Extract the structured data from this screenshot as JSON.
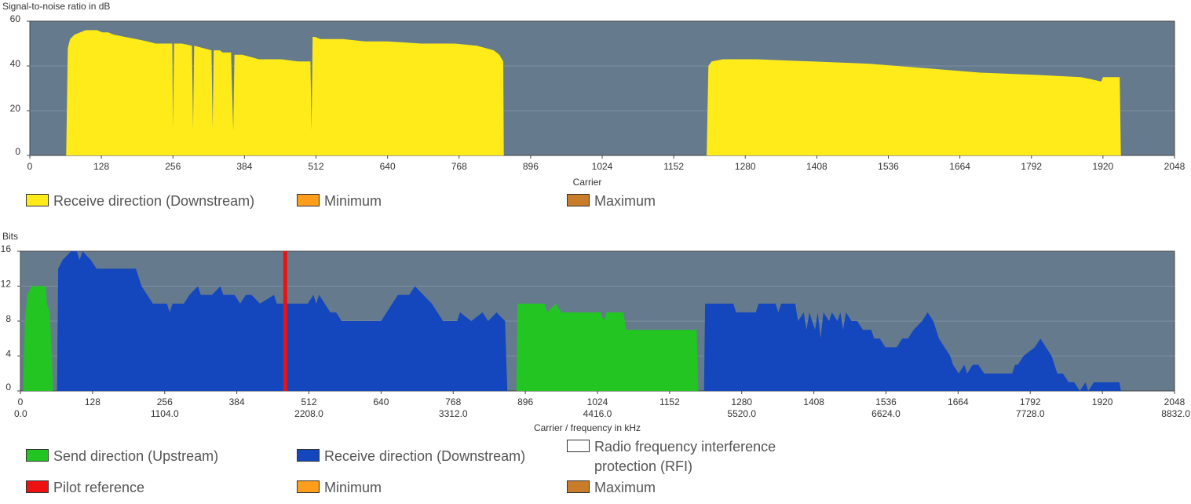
{
  "colors": {
    "plot_bg": "#657a8d",
    "grid": "#7f90a0",
    "snr_fill": "#ffeb1a",
    "upstream": "#22c522",
    "downstream": "#1447bd",
    "pilot": "#ee1111",
    "rfi": "#ffffff",
    "minimum": "#ff9e1a",
    "maximum": "#c97c2a"
  },
  "snr_chart": {
    "ylabel": "Signal-to-noise ratio in dB",
    "xlabel": "Carrier",
    "legend": {
      "downstream": "Receive direction (Downstream)",
      "minimum": "Minimum",
      "maximum": "Maximum"
    }
  },
  "bits_chart": {
    "ylabel": "Bits",
    "xlabel": "Carrier / frequency in kHz",
    "legend": {
      "upstream": "Send direction (Upstream)",
      "downstream": "Receive direction (Downstream)",
      "rfi": "Radio frequency interference protection (RFI)",
      "pilot": "Pilot reference",
      "minimum": "Minimum",
      "maximum": "Maximum"
    }
  },
  "chart_data": [
    {
      "type": "area",
      "title": "",
      "xlabel": "Carrier",
      "ylabel": "Signal-to-noise ratio in dB",
      "xlim": [
        0,
        2048
      ],
      "ylim": [
        0,
        60
      ],
      "x_ticks": [
        "0",
        "128",
        "256",
        "384",
        "512",
        "640",
        "768",
        "896",
        "1024",
        "1152",
        "1280",
        "1408",
        "1536",
        "1664",
        "1792",
        "1920",
        "2048"
      ],
      "y_ticks": [
        "0",
        "20",
        "40",
        "60"
      ],
      "grid": true,
      "legend_position": "bottom",
      "series": [
        {
          "name": "Receive direction (Downstream)",
          "color": "#ffeb1a",
          "points": [
            [
              65,
              0
            ],
            [
              68,
              48
            ],
            [
              72,
              52
            ],
            [
              80,
              54
            ],
            [
              90,
              55
            ],
            [
              100,
              56
            ],
            [
              120,
              56
            ],
            [
              130,
              55
            ],
            [
              140,
              55
            ],
            [
              150,
              54
            ],
            [
              170,
              53
            ],
            [
              190,
              52
            ],
            [
              210,
              51
            ],
            [
              225,
              50
            ],
            [
              255,
              50
            ],
            [
              256,
              12
            ],
            [
              258,
              50
            ],
            [
              272,
              50
            ],
            [
              290,
              49
            ],
            [
              292,
              12
            ],
            [
              294,
              49
            ],
            [
              310,
              48
            ],
            [
              325,
              47
            ],
            [
              327,
              12
            ],
            [
              329,
              47
            ],
            [
              340,
              47
            ],
            [
              345,
              46
            ],
            [
              360,
              46
            ],
            [
              364,
              11
            ],
            [
              366,
              45
            ],
            [
              380,
              45
            ],
            [
              395,
              44
            ],
            [
              410,
              43
            ],
            [
              450,
              43
            ],
            [
              480,
              42
            ],
            [
              502,
              42
            ],
            [
              504,
              11
            ],
            [
              506,
              53
            ],
            [
              510,
              53
            ],
            [
              520,
              52
            ],
            [
              560,
              52
            ],
            [
              600,
              51
            ],
            [
              640,
              51
            ],
            [
              700,
              50
            ],
            [
              760,
              50
            ],
            [
              800,
              49
            ],
            [
              830,
              47
            ],
            [
              840,
              45
            ],
            [
              847,
              42
            ],
            [
              848,
              0
            ],
            [
              1211,
              0
            ],
            [
              1214,
              40
            ],
            [
              1220,
              42
            ],
            [
              1240,
              43
            ],
            [
              1300,
              43
            ],
            [
              1400,
              42
            ],
            [
              1500,
              41
            ],
            [
              1600,
              39
            ],
            [
              1700,
              37
            ],
            [
              1800,
              36
            ],
            [
              1880,
              35
            ],
            [
              1900,
              34
            ],
            [
              1917,
              33
            ],
            [
              1920,
              35
            ],
            [
              1950,
              35
            ],
            [
              1952,
              0
            ]
          ]
        }
      ]
    },
    {
      "type": "area",
      "title": "",
      "xlabel": "Carrier / frequency in kHz",
      "ylabel": "Bits",
      "xlim": [
        0,
        2048
      ],
      "ylim": [
        0,
        16
      ],
      "x_ticks": [
        "0",
        "128",
        "256",
        "384",
        "512",
        "640",
        "768",
        "896",
        "1024",
        "1152",
        "1280",
        "1408",
        "1536",
        "1664",
        "1792",
        "1920",
        "2048"
      ],
      "freq_ticks": [
        {
          "carrier": 0,
          "label": "0.0"
        },
        {
          "carrier": 256,
          "label": "1104.0"
        },
        {
          "carrier": 512,
          "label": "2208.0"
        },
        {
          "carrier": 768,
          "label": "3312.0"
        },
        {
          "carrier": 1024,
          "label": "4416.0"
        },
        {
          "carrier": 1280,
          "label": "5520.0"
        },
        {
          "carrier": 1536,
          "label": "6624.0"
        },
        {
          "carrier": 1792,
          "label": "7728.0"
        },
        {
          "carrier": 2048,
          "label": "8832.0"
        }
      ],
      "y_ticks": [
        "0",
        "4",
        "8",
        "12",
        "16"
      ],
      "grid": true,
      "legend_position": "bottom",
      "series": [
        {
          "name": "Send direction (Upstream)",
          "color": "#22c522",
          "points": [
            [
              5,
              0
            ],
            [
              8,
              8
            ],
            [
              12,
              11
            ],
            [
              20,
              12
            ],
            [
              45,
              12
            ],
            [
              47,
              10
            ],
            [
              52,
              9
            ],
            [
              56,
              4
            ],
            [
              58,
              0
            ]
          ]
        },
        {
          "name": "Send direction (Upstream)",
          "color": "#22c522",
          "points": [
            [
              880,
              0
            ],
            [
              882,
              10
            ],
            [
              930,
              10
            ],
            [
              935,
              9
            ],
            [
              950,
              10
            ],
            [
              960,
              9
            ],
            [
              1000,
              9
            ],
            [
              1030,
              9
            ],
            [
              1035,
              8
            ],
            [
              1040,
              9
            ],
            [
              1070,
              9
            ],
            [
              1075,
              7
            ],
            [
              1200,
              7
            ],
            [
              1203,
              0
            ]
          ]
        },
        {
          "name": "Receive direction (Downstream)",
          "color": "#1447bd",
          "points": [
            [
              65,
              0
            ],
            [
              67,
              14
            ],
            [
              75,
              15
            ],
            [
              90,
              16
            ],
            [
              100,
              16
            ],
            [
              105,
              15
            ],
            [
              110,
              16
            ],
            [
              125,
              15
            ],
            [
              135,
              14
            ],
            [
              205,
              14
            ],
            [
              215,
              12
            ],
            [
              225,
              11
            ],
            [
              235,
              10
            ],
            [
              260,
              10
            ],
            [
              265,
              9
            ],
            [
              270,
              10
            ],
            [
              290,
              10
            ],
            [
              300,
              11
            ],
            [
              315,
              12
            ],
            [
              320,
              11
            ],
            [
              340,
              11
            ],
            [
              355,
              12
            ],
            [
              360,
              11
            ],
            [
              380,
              11
            ],
            [
              390,
              10
            ],
            [
              400,
              11
            ],
            [
              410,
              11
            ],
            [
              425,
              10
            ],
            [
              450,
              11
            ],
            [
              455,
              10
            ],
            [
              495,
              10
            ],
            [
              510,
              10
            ],
            [
              520,
              11
            ],
            [
              525,
              10
            ],
            [
              530,
              11
            ],
            [
              540,
              10
            ],
            [
              550,
              9
            ],
            [
              560,
              9
            ],
            [
              570,
              8
            ],
            [
              600,
              8
            ],
            [
              610,
              8
            ],
            [
              640,
              8
            ],
            [
              650,
              9
            ],
            [
              660,
              10
            ],
            [
              670,
              11
            ],
            [
              690,
              11
            ],
            [
              700,
              12
            ],
            [
              715,
              11
            ],
            [
              730,
              10
            ],
            [
              740,
              9
            ],
            [
              750,
              8
            ],
            [
              775,
              8
            ],
            [
              780,
              9
            ],
            [
              800,
              8
            ],
            [
              820,
              9
            ],
            [
              830,
              8
            ],
            [
              845,
              9
            ],
            [
              860,
              8
            ],
            [
              864,
              0
            ]
          ]
        },
        {
          "name": "Receive direction (Downstream)",
          "color": "#1447bd",
          "points": [
            [
              1213,
              0
            ],
            [
              1215,
              10
            ],
            [
              1265,
              10
            ],
            [
              1270,
              9
            ],
            [
              1305,
              9
            ],
            [
              1310,
              10
            ],
            [
              1340,
              10
            ],
            [
              1345,
              9
            ],
            [
              1350,
              10
            ],
            [
              1375,
              10
            ],
            [
              1380,
              8
            ],
            [
              1390,
              9
            ],
            [
              1395,
              7
            ],
            [
              1400,
              9
            ],
            [
              1410,
              7
            ],
            [
              1415,
              9
            ],
            [
              1420,
              6
            ],
            [
              1425,
              9
            ],
            [
              1435,
              8
            ],
            [
              1440,
              9
            ],
            [
              1450,
              8
            ],
            [
              1455,
              9
            ],
            [
              1460,
              7
            ],
            [
              1465,
              9
            ],
            [
              1475,
              8
            ],
            [
              1485,
              8
            ],
            [
              1495,
              7
            ],
            [
              1510,
              7
            ],
            [
              1515,
              6
            ],
            [
              1525,
              6
            ],
            [
              1535,
              5
            ],
            [
              1555,
              5
            ],
            [
              1565,
              6
            ],
            [
              1575,
              6
            ],
            [
              1585,
              7
            ],
            [
              1600,
              8
            ],
            [
              1610,
              9
            ],
            [
              1620,
              8
            ],
            [
              1630,
              6
            ],
            [
              1640,
              5
            ],
            [
              1650,
              4
            ],
            [
              1655,
              3
            ],
            [
              1665,
              2
            ],
            [
              1675,
              3
            ],
            [
              1680,
              2
            ],
            [
              1690,
              3
            ],
            [
              1700,
              3
            ],
            [
              1710,
              2
            ],
            [
              1760,
              2
            ],
            [
              1765,
              3
            ],
            [
              1770,
              3
            ],
            [
              1780,
              4
            ],
            [
              1800,
              5
            ],
            [
              1810,
              6
            ],
            [
              1820,
              5
            ],
            [
              1830,
              4
            ],
            [
              1840,
              2
            ],
            [
              1850,
              2
            ],
            [
              1860,
              1
            ],
            [
              1870,
              1
            ],
            [
              1880,
              0
            ],
            [
              1890,
              1
            ],
            [
              1895,
              0
            ],
            [
              1905,
              1
            ],
            [
              1950,
              1
            ],
            [
              1953,
              0
            ]
          ]
        },
        {
          "name": "Pilot reference",
          "color": "#ee1111",
          "type": "vline",
          "x": 470
        }
      ]
    }
  ]
}
